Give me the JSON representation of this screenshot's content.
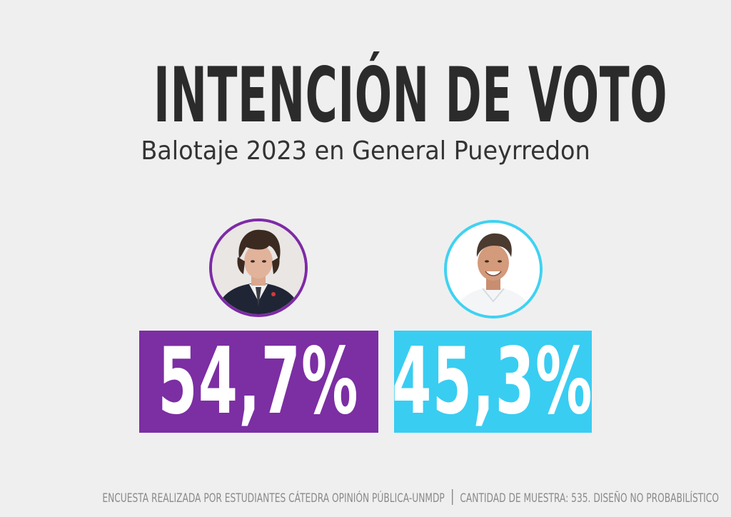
{
  "header": {
    "title": "INTENCIÓN DE VOTO",
    "subtitle": "Balotaje 2023 en General Pueyrredon"
  },
  "candidates": [
    {
      "avatar": "candidate-photo-dark-suit",
      "result": "54,7%",
      "color": "#7c2ea3"
    },
    {
      "avatar": "candidate-photo-white-shirt",
      "result": "45,3%",
      "color": "#39cdf2"
    }
  ],
  "footer": {
    "left": "ENCUESTA REALIZADA POR ESTUDIANTES CÁTEDRA OPINIÓN PÚBLICA-UNMDP",
    "right": "CANTIDAD DE MUESTRA: 535. DISEÑO NO PROBABILÍSTICO"
  }
}
